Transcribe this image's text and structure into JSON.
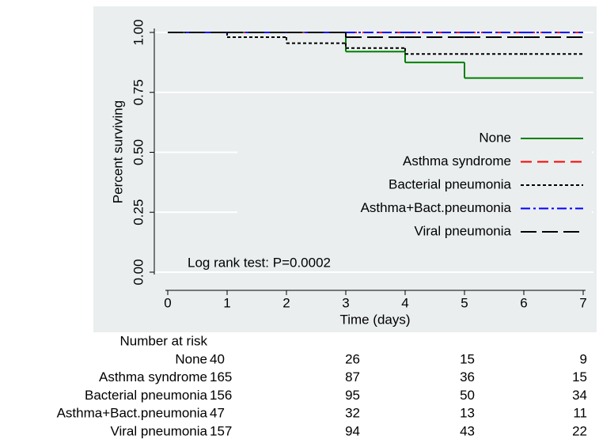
{
  "chart_data": {
    "type": "step",
    "x": [
      0,
      1,
      2,
      3,
      4,
      5,
      6
    ],
    "series": [
      {
        "name": "None",
        "color": "#008000",
        "dash": "",
        "values": [
          1.0,
          1.0,
          1.0,
          0.92,
          0.875,
          0.81,
          0.81
        ]
      },
      {
        "name": "Asthma syndrome",
        "color": "#ff0000",
        "dash": "14 7",
        "values": [
          1.0,
          1.0,
          1.0,
          1.0,
          1.0,
          1.0,
          1.0
        ]
      },
      {
        "name": "Bacterial pneumonia",
        "color": "#000000",
        "dash": "4 3",
        "values": [
          1.0,
          0.98,
          0.955,
          0.935,
          0.91,
          0.91,
          0.91
        ]
      },
      {
        "name": "Asthma+Bact.pneumonia",
        "color": "#0000ff",
        "dash": "12 4 3 4",
        "values": [
          1.0,
          1.0,
          1.0,
          1.0,
          1.0,
          1.0,
          1.0
        ]
      },
      {
        "name": "Viral pneumonia",
        "color": "#000000",
        "dash": "20 7",
        "values": [
          1.0,
          1.0,
          1.0,
          0.98,
          0.98,
          0.98,
          0.98
        ]
      }
    ],
    "xlim": [
      0,
      7
    ],
    "xticks": [
      0,
      1,
      2,
      3,
      4,
      5,
      6,
      7
    ],
    "ylim": [
      0,
      1
    ],
    "yticks": [
      {
        "value": 0,
        "label": "0.00"
      },
      0.25,
      {
        "value": 0.5,
        "label": "0.50"
      },
      0.75,
      {
        "value": 1,
        "label": "1.00"
      }
    ],
    "grid": true,
    "xlabel": "Time (days)",
    "ylabel": "Percent surviving",
    "annotation": "Log rank test: P=0.0002",
    "risk_table": {
      "title": "Number at risk",
      "rows": [
        {
          "name": "None",
          "counts": [
            40,
            26,
            15,
            9
          ]
        },
        {
          "name": "Asthma syndrome",
          "counts": [
            165,
            87,
            36,
            15
          ]
        },
        {
          "name": "Bacterial pneumonia",
          "counts": [
            156,
            95,
            50,
            34
          ]
        },
        {
          "name": "Asthma+Bact.pneumonia",
          "counts": [
            47,
            32,
            13,
            11
          ]
        },
        {
          "name": "Viral pneumonia",
          "counts": [
            157,
            94,
            43,
            22
          ]
        }
      ]
    }
  }
}
